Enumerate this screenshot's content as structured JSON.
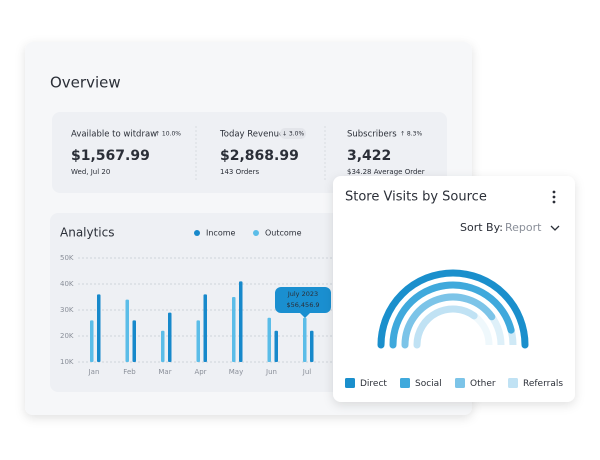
{
  "overview": {
    "title": "Overview",
    "stats": [
      {
        "label": "Available to witdraw",
        "change": "↑ 10.0%",
        "value": "$1,567.99",
        "note": "Wed, Jul 20"
      },
      {
        "label": "Today Revenue",
        "change": "↓ 3.0%",
        "value": "$2,868.99",
        "note": "143 Orders"
      },
      {
        "label": "Subscribers",
        "change": "↑ 8.3%",
        "value": "3,422",
        "note": "$34.28 Average Order"
      }
    ]
  },
  "analytics": {
    "title": "Analytics",
    "categories": [
      "Jan",
      "Feb",
      "Mar",
      "Apr",
      "May",
      "Jun",
      "Jul"
    ],
    "series": [
      {
        "name": "Income",
        "color": "#1789cb",
        "values": [
          36000,
          26000,
          29000,
          36000,
          41000,
          22000,
          22000
        ]
      },
      {
        "name": "Outcome",
        "color": "#5bbde8",
        "values": [
          26000,
          34000,
          22000,
          26000,
          35000,
          27000,
          27000
        ]
      }
    ],
    "ylim": [
      10000,
      50000
    ],
    "yticks": [
      {
        "value": 10000,
        "label": "10K"
      },
      {
        "value": 20000,
        "label": "20K"
      },
      {
        "value": 30000,
        "label": "30K"
      },
      {
        "value": 40000,
        "label": "40K"
      },
      {
        "value": 50000,
        "label": "50K"
      }
    ],
    "tooltip": {
      "title": "July 2023",
      "value": "$56,456.9"
    }
  },
  "store_visits": {
    "title": "Store Visits by Source",
    "sort_label": "Sort By:",
    "sort_value": "Report",
    "max": 100,
    "series": [
      {
        "name": "Direct",
        "color": "#1a8fcc",
        "value": 100
      },
      {
        "name": "Social",
        "color": "#3fa9dc",
        "value": 92
      },
      {
        "name": "Other",
        "color": "#7cc4e8",
        "value": 80
      },
      {
        "name": "Referrals",
        "color": "#c0e2f4",
        "value": 70
      }
    ]
  }
}
